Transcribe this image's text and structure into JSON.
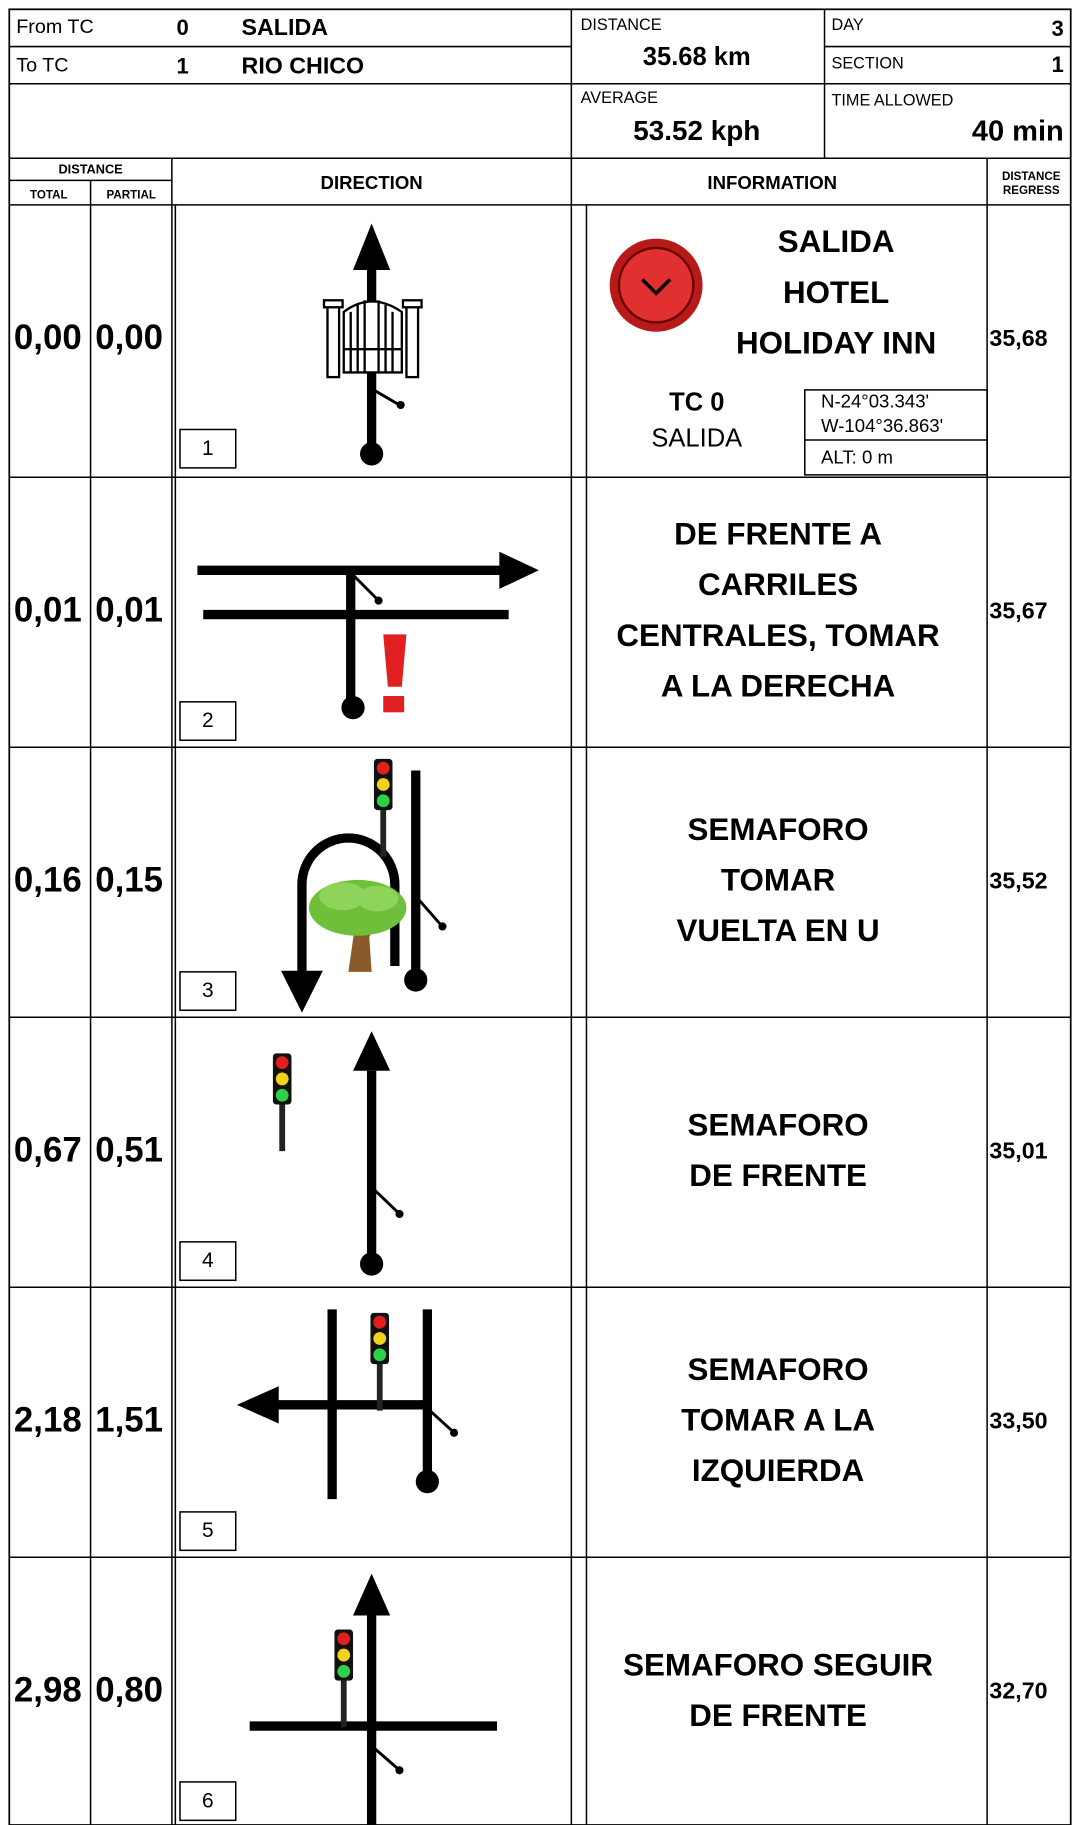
{
  "header": {
    "from_tc": {
      "label": "From TC",
      "number": "0",
      "name": "SALIDA"
    },
    "to_tc": {
      "label": "To TC",
      "number": "1",
      "name": "RIO CHICO"
    },
    "distance": {
      "label": "DISTANCE",
      "value": "35.68 km"
    },
    "day": {
      "label": "DAY",
      "value": "3"
    },
    "section": {
      "label": "SECTION",
      "value": "1"
    },
    "average": {
      "label": "AVERAGE",
      "value": "53.52 kph"
    },
    "time_allowed": {
      "label": "TIME ALLOWED",
      "value": "40 min"
    }
  },
  "columns": {
    "distance": "DISTANCE",
    "total": "TOTAL",
    "partial": "PARTIAL",
    "direction": "DIRECTION",
    "information": "INFORMATION",
    "regress": [
      "DISTANCE",
      "REGRESS"
    ]
  },
  "rows": [
    {
      "total": "0,00",
      "partial": "0,00",
      "number": "1",
      "info": [
        "SALIDA",
        "HOTEL",
        "HOLIDAY INN"
      ],
      "regress": "35,68",
      "tc": "TC 0",
      "tc_name": "SALIDA",
      "coords": [
        "N-24°03.343'",
        "W-104°36.863'"
      ],
      "alt": "ALT: 0 m"
    },
    {
      "total": "0,01",
      "partial": "0,01",
      "number": "2",
      "info": [
        "DE FRENTE A",
        "CARRILES",
        "CENTRALES, TOMAR",
        "A LA DERECHA"
      ],
      "regress": "35,67"
    },
    {
      "total": "0,16",
      "partial": "0,15",
      "number": "3",
      "info": [
        "SEMAFORO",
        "TOMAR",
        "VUELTA EN U"
      ],
      "regress": "35,52"
    },
    {
      "total": "0,67",
      "partial": "0,51",
      "number": "4",
      "info": [
        "SEMAFORO",
        "DE FRENTE"
      ],
      "regress": "35,01"
    },
    {
      "total": "2,18",
      "partial": "1,51",
      "number": "5",
      "info": [
        "SEMAFORO",
        "TOMAR A LA",
        "IZQUIERDA"
      ],
      "regress": "33,50"
    },
    {
      "total": "2,98",
      "partial": "0,80",
      "number": "6",
      "info": [
        "SEMAFORO SEGUIR",
        "DE FRENTE"
      ],
      "regress": "32,70"
    }
  ]
}
